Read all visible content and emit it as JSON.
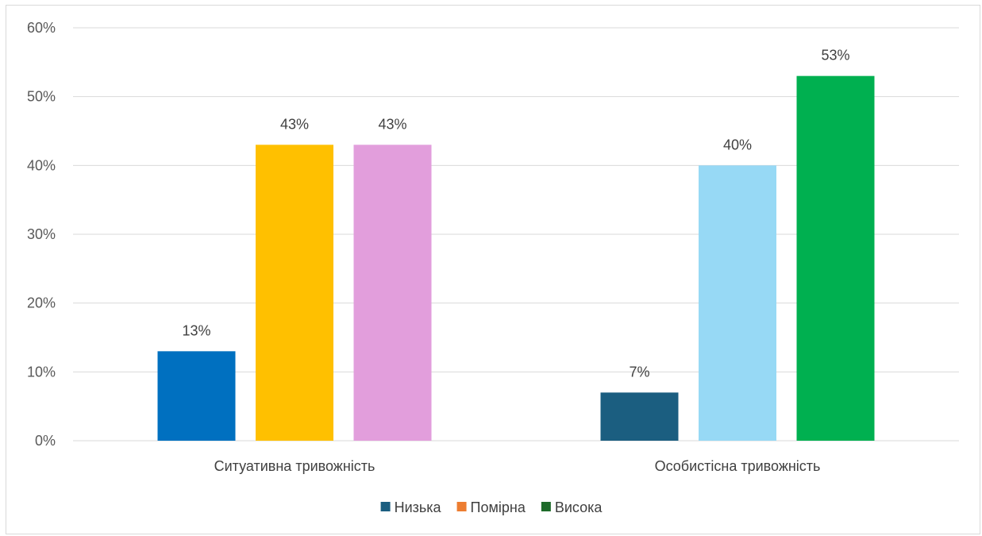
{
  "chart_data": {
    "type": "bar",
    "title": "",
    "xlabel": "",
    "ylabel": "",
    "categories": [
      "Ситуативна тривожність",
      "Особистісна тривожність"
    ],
    "series": [
      {
        "name": "Низька",
        "values": [
          13,
          7
        ]
      },
      {
        "name": "Помірна",
        "values": [
          43,
          40
        ]
      },
      {
        "name": "Висока",
        "values": [
          43,
          53
        ]
      }
    ],
    "value_labels": [
      [
        "13%",
        "7%"
      ],
      [
        "43%",
        "40%"
      ],
      [
        "43%",
        "53%"
      ]
    ],
    "bar_colors": [
      [
        "#0070C0",
        "#1B5E80"
      ],
      [
        "#FFC000",
        "#97D9F5"
      ],
      [
        "#E29EDC",
        "#00B050"
      ]
    ],
    "legend_colors": [
      "#1B5E80",
      "#ED7D31",
      "#1E6B2A"
    ],
    "ylim": [
      0,
      60
    ],
    "yticks": [
      0,
      10,
      20,
      30,
      40,
      50,
      60
    ],
    "ytick_labels": [
      "0%",
      "10%",
      "20%",
      "30%",
      "40%",
      "50%",
      "60%"
    ],
    "grid": true,
    "legend_position": "bottom"
  }
}
